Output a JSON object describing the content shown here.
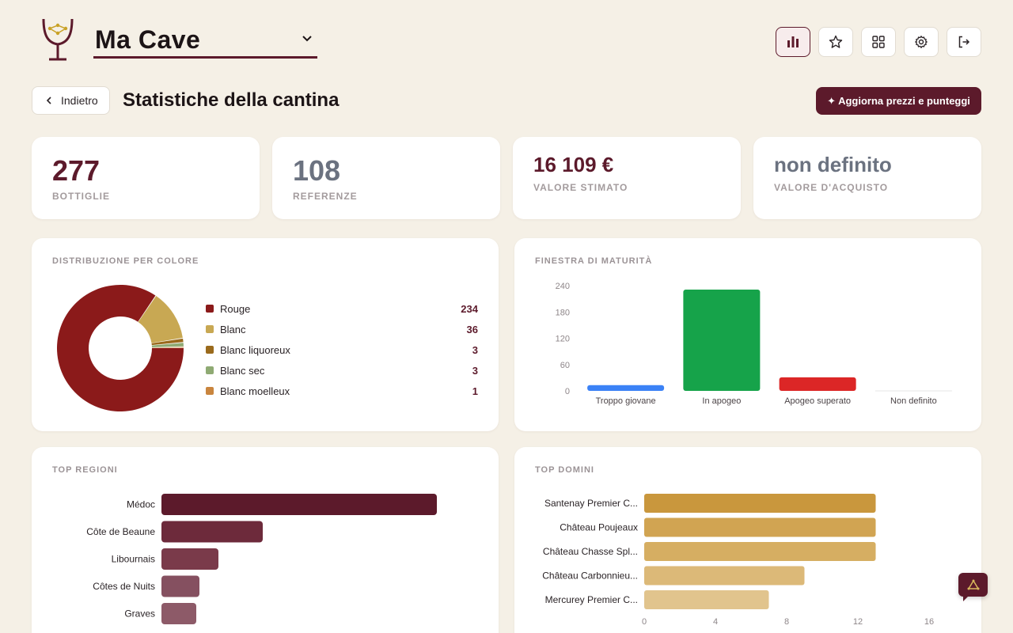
{
  "header": {
    "cellar_name": "Ma Cave",
    "icons": [
      "stats-icon",
      "star-icon",
      "grid-icon",
      "gear-icon",
      "logout-icon"
    ]
  },
  "page": {
    "back_label": "Indietro",
    "title": "Statistiche della cantina",
    "update_label": "✦ Aggiorna prezzi e punteggi"
  },
  "stats": [
    {
      "value": "277",
      "label": "BOTTIGLIE",
      "color": "#5c1a2b"
    },
    {
      "value": "108",
      "label": "REFERENZE",
      "color": "#6b7280"
    },
    {
      "value": "16 109 €",
      "label": "VALORE STIMATO",
      "color": "#5c1a2b"
    },
    {
      "value": "non definito",
      "label": "VALORE D'ACQUISTO",
      "color": "#6b7280"
    }
  ],
  "color_distribution": {
    "title": "DISTRIBUZIONE PER COLORE",
    "chart_data": {
      "type": "pie",
      "categories": [
        "Rouge",
        "Blanc",
        "Blanc liquoreux",
        "Blanc sec",
        "Blanc moelleux"
      ],
      "values": [
        234,
        36,
        3,
        3,
        1
      ],
      "colors": [
        "#8b1a1a",
        "#c8a853",
        "#9a6a1c",
        "#8faa73",
        "#c9853e"
      ]
    }
  },
  "maturity": {
    "title": "FINESTRA DI MATURITÀ",
    "chart_data": {
      "type": "bar",
      "categories": [
        "Troppo giovane",
        "In apogeo",
        "Apogeo superato",
        "Non definito"
      ],
      "values": [
        13,
        231,
        31,
        0
      ],
      "colors": [
        "#3b82f6",
        "#16a34a",
        "#dc2626",
        "#9ca3af"
      ],
      "yticks": [
        0,
        60,
        120,
        180,
        240
      ],
      "ylim": [
        0,
        240
      ]
    }
  },
  "top_regions": {
    "title": "TOP REGIONI",
    "chart_data": {
      "type": "bar",
      "orientation": "horizontal",
      "categories": [
        "Médoc",
        "Côte de Beaune",
        "Libournais",
        "Côtes de Nuits",
        "Graves"
      ],
      "values": [
        87,
        32,
        18,
        12,
        11
      ],
      "xlim": [
        0,
        100
      ],
      "colors": [
        "#5c1a2b",
        "#6d2a3b",
        "#7a3a4a",
        "#855060",
        "#8d5a68"
      ]
    }
  },
  "top_domains": {
    "title": "TOP DOMINI",
    "chart_data": {
      "type": "bar",
      "orientation": "horizontal",
      "categories": [
        "Santenay Premier C...",
        "Château Poujeaux",
        "Château Chasse Spl...",
        "Château Carbonnieu...",
        "Mercurey Premier C..."
      ],
      "values": [
        13,
        13,
        13,
        9,
        7
      ],
      "xticks": [
        0,
        4,
        8,
        12,
        16
      ],
      "xlim": [
        0,
        16
      ],
      "colors": [
        "#c9973d",
        "#d1a452",
        "#d6ae62",
        "#dcb978",
        "#e1c48d"
      ]
    }
  }
}
